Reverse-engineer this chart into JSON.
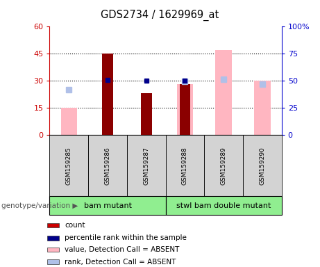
{
  "title": "GDS2734 / 1629969_at",
  "samples": [
    "GSM159285",
    "GSM159286",
    "GSM159287",
    "GSM159288",
    "GSM159289",
    "GSM159290"
  ],
  "count": {
    "GSM159285": null,
    "GSM159286": 45,
    "GSM159287": 23,
    "GSM159288": 28,
    "GSM159289": null,
    "GSM159290": null
  },
  "percentile": {
    "GSM159285": null,
    "GSM159286": 30.5,
    "GSM159287": 30,
    "GSM159288": 30,
    "GSM159289": null,
    "GSM159290": null
  },
  "value_absent": {
    "GSM159285": 15,
    "GSM159286": null,
    "GSM159287": null,
    "GSM159288": 28,
    "GSM159289": 47,
    "GSM159290": 30
  },
  "rank_absent": {
    "GSM159285": 25,
    "GSM159286": null,
    "GSM159287": null,
    "GSM159288": 29.5,
    "GSM159289": 31,
    "GSM159290": 28
  },
  "left_ylim": [
    0,
    60
  ],
  "right_ylim": [
    0,
    100
  ],
  "left_yticks": [
    0,
    15,
    30,
    45,
    60
  ],
  "right_yticks": [
    0,
    25,
    50,
    75,
    100
  ],
  "left_yticklabels": [
    "0",
    "15",
    "30",
    "45",
    "60"
  ],
  "right_yticklabels": [
    "0",
    "25",
    "50",
    "75",
    "100%"
  ],
  "left_tick_color": "#cc0000",
  "right_tick_color": "#0000cc",
  "count_color": "#8b0000",
  "percentile_color": "#00008b",
  "value_absent_color": "#ffb6c1",
  "rank_absent_color": "#b0c0e8",
  "bg_color": "#d3d3d3",
  "group_bg_color": "#90ee90",
  "genotype_label": "genotype/variation",
  "group_ranges": [
    [
      0,
      2,
      "bam mutant"
    ],
    [
      3,
      5,
      "stwl bam double mutant"
    ]
  ],
  "legend_items": [
    {
      "label": "count",
      "color": "#cc0000"
    },
    {
      "label": "percentile rank within the sample",
      "color": "#00008b"
    },
    {
      "label": "value, Detection Call = ABSENT",
      "color": "#ffb6c1"
    },
    {
      "label": "rank, Detection Call = ABSENT",
      "color": "#b0c0e8"
    }
  ]
}
